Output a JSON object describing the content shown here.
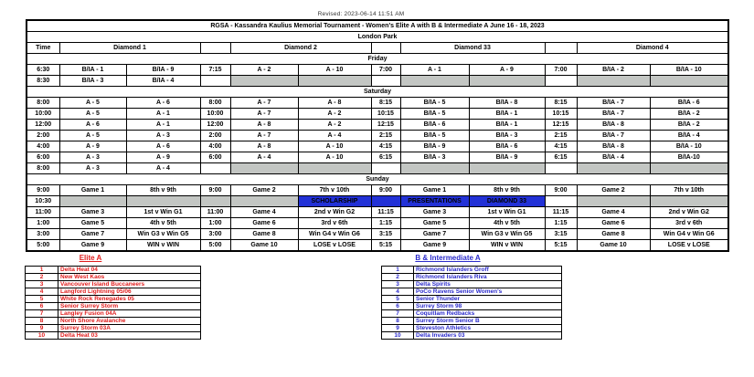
{
  "colors": {
    "red": "#e01c1c",
    "blue": "#2b2bcb",
    "banner_blue": "#2231d6",
    "blocked_gray": "#c3c6c3"
  },
  "meta": {
    "revised": "Revised: 2023-06-14 11:51 AM"
  },
  "table": {
    "title": "RGSA - Kassandra Kaulius Memorial  Tournament  -  Women's Elite A with B & Intermediate A  June 16 - 18, 2023",
    "venue": "London Park",
    "header": {
      "time_label": "Time",
      "diamond1": "Diamond 1",
      "diamond2": "Diamond 2",
      "diamond33": "Diamond 33",
      "diamond4": "Diamond 4"
    },
    "days": [
      {
        "label": "Friday",
        "rows": [
          [
            {
              "t": "6:30",
              "c": "t"
            },
            {
              "t": "B/IA - 1",
              "c": "b"
            },
            {
              "t": "B/IA - 9",
              "c": "b"
            },
            {
              "t": "7:15",
              "c": "t"
            },
            {
              "t": "A - 2",
              "c": "r"
            },
            {
              "t": "A - 10",
              "c": "r"
            },
            {
              "t": "7:00",
              "c": "t"
            },
            {
              "t": "A - 1",
              "c": "r"
            },
            {
              "t": "A - 9",
              "c": "r"
            },
            {
              "t": "7:00",
              "c": "t"
            },
            {
              "t": "B/IA - 2",
              "c": "b"
            },
            {
              "t": "B/IA - 10",
              "c": "b"
            }
          ],
          [
            {
              "t": "8:30",
              "c": "t"
            },
            {
              "t": "B/IA - 3",
              "c": "b"
            },
            {
              "t": "B/IA - 4",
              "c": "b"
            },
            {
              "t": "",
              "c": "w"
            },
            {
              "t": "",
              "c": "g"
            },
            {
              "t": "",
              "c": "g"
            },
            {
              "t": "",
              "c": "w"
            },
            {
              "t": "",
              "c": "g"
            },
            {
              "t": "",
              "c": "g"
            },
            {
              "t": "",
              "c": "w"
            },
            {
              "t": "",
              "c": "g"
            },
            {
              "t": "",
              "c": "g"
            }
          ]
        ]
      },
      {
        "label": "Saturday",
        "rows": [
          [
            {
              "t": "8:00",
              "c": "t"
            },
            {
              "t": "A - 5",
              "c": "r"
            },
            {
              "t": "A - 6",
              "c": "r"
            },
            {
              "t": "8:00",
              "c": "t"
            },
            {
              "t": "A - 7",
              "c": "r"
            },
            {
              "t": "A - 8",
              "c": "r"
            },
            {
              "t": "8:15",
              "c": "t"
            },
            {
              "t": "B/IA - 5",
              "c": "b"
            },
            {
              "t": "B/IA - 8",
              "c": "b"
            },
            {
              "t": "8:15",
              "c": "t"
            },
            {
              "t": "B/IA - 7",
              "c": "b"
            },
            {
              "t": "B/IA - 6",
              "c": "b"
            }
          ],
          [
            {
              "t": "10:00",
              "c": "t"
            },
            {
              "t": "A - 5",
              "c": "r"
            },
            {
              "t": "A - 1",
              "c": "r"
            },
            {
              "t": "10:00",
              "c": "t"
            },
            {
              "t": "A - 7",
              "c": "r"
            },
            {
              "t": "A - 2",
              "c": "r"
            },
            {
              "t": "10:15",
              "c": "t"
            },
            {
              "t": "B/IA - 5",
              "c": "b"
            },
            {
              "t": "B/IA - 1",
              "c": "b"
            },
            {
              "t": "10:15",
              "c": "t"
            },
            {
              "t": "B/IA - 7",
              "c": "b"
            },
            {
              "t": "B/IA - 2",
              "c": "b"
            }
          ],
          [
            {
              "t": "12:00",
              "c": "t"
            },
            {
              "t": "A - 6",
              "c": "r"
            },
            {
              "t": "A - 1",
              "c": "r"
            },
            {
              "t": "12:00",
              "c": "t"
            },
            {
              "t": "A - 8",
              "c": "r"
            },
            {
              "t": "A - 2",
              "c": "r"
            },
            {
              "t": "12:15",
              "c": "t"
            },
            {
              "t": "B/IA - 6",
              "c": "b"
            },
            {
              "t": "B/IA - 1",
              "c": "b"
            },
            {
              "t": "12:15",
              "c": "t"
            },
            {
              "t": "B/IA - 8",
              "c": "b"
            },
            {
              "t": "B/IA - 2",
              "c": "b"
            }
          ],
          [
            {
              "t": "2:00",
              "c": "t"
            },
            {
              "t": "A - 5",
              "c": "r"
            },
            {
              "t": "A - 3",
              "c": "r"
            },
            {
              "t": "2:00",
              "c": "t"
            },
            {
              "t": "A - 7",
              "c": "r"
            },
            {
              "t": "A - 4",
              "c": "r"
            },
            {
              "t": "2:15",
              "c": "t"
            },
            {
              "t": "B/IA - 5",
              "c": "b"
            },
            {
              "t": "B/IA - 3",
              "c": "b"
            },
            {
              "t": "2:15",
              "c": "t"
            },
            {
              "t": "B/IA - 7",
              "c": "b"
            },
            {
              "t": "B/IA - 4",
              "c": "b"
            }
          ],
          [
            {
              "t": "4:00",
              "c": "t"
            },
            {
              "t": "A - 9",
              "c": "r"
            },
            {
              "t": "A - 6",
              "c": "r"
            },
            {
              "t": "4:00",
              "c": "t"
            },
            {
              "t": "A - 8",
              "c": "r"
            },
            {
              "t": "A - 10",
              "c": "r"
            },
            {
              "t": "4:15",
              "c": "t"
            },
            {
              "t": "B/IA - 9",
              "c": "b"
            },
            {
              "t": "B/IA - 6",
              "c": "b"
            },
            {
              "t": "4:15",
              "c": "t"
            },
            {
              "t": "B/IA - 8",
              "c": "b"
            },
            {
              "t": "B/IA - 10",
              "c": "b"
            }
          ],
          [
            {
              "t": "6:00",
              "c": "t"
            },
            {
              "t": "A - 3",
              "c": "r"
            },
            {
              "t": "A - 9",
              "c": "r"
            },
            {
              "t": "6:00",
              "c": "t"
            },
            {
              "t": "A - 4",
              "c": "r"
            },
            {
              "t": "A - 10",
              "c": "r"
            },
            {
              "t": "6:15",
              "c": "t"
            },
            {
              "t": "B/IA - 3",
              "c": "b"
            },
            {
              "t": "B/IA - 9",
              "c": "b"
            },
            {
              "t": "6:15",
              "c": "t"
            },
            {
              "t": "B/IA - 4",
              "c": "b"
            },
            {
              "t": "B/IA-10",
              "c": "b"
            }
          ],
          [
            {
              "t": "8:00",
              "c": "t"
            },
            {
              "t": "A - 3",
              "c": "r"
            },
            {
              "t": "A - 4",
              "c": "r"
            },
            {
              "t": "",
              "c": "w"
            },
            {
              "t": "",
              "c": "g"
            },
            {
              "t": "",
              "c": "g"
            },
            {
              "t": "",
              "c": "w"
            },
            {
              "t": "",
              "c": "g"
            },
            {
              "t": "",
              "c": "g"
            },
            {
              "t": "",
              "c": "w"
            },
            {
              "t": "",
              "c": "g"
            },
            {
              "t": "",
              "c": "g"
            }
          ]
        ]
      },
      {
        "label": "Sunday",
        "rows": [
          [
            {
              "t": "9:00",
              "c": "t"
            },
            {
              "t": "Game 1",
              "c": "r"
            },
            {
              "t": "8th v 9th",
              "c": "r"
            },
            {
              "t": "9:00",
              "c": "t"
            },
            {
              "t": "Game 2",
              "c": "r"
            },
            {
              "t": "7th v 10th",
              "c": "r"
            },
            {
              "t": "9:00",
              "c": "t"
            },
            {
              "t": "Game 1",
              "c": "b"
            },
            {
              "t": "8th v 9th",
              "c": "b"
            },
            {
              "t": "9:00",
              "c": "t"
            },
            {
              "t": "Game 2",
              "c": "b"
            },
            {
              "t": "7th v 10th",
              "c": "b"
            }
          ],
          [
            {
              "t": "10:30",
              "c": "t"
            },
            {
              "t": "",
              "c": "g"
            },
            {
              "t": "",
              "c": "g"
            },
            {
              "t": "",
              "c": "g"
            },
            {
              "t": "",
              "c": "g"
            },
            {
              "t": "SCHOLARSHIP",
              "c": "bn"
            },
            {
              "t": "",
              "c": "bn"
            },
            {
              "t": "PRESENTATIONS",
              "c": "bn"
            },
            {
              "t": "DIAMOND 33",
              "c": "bn"
            },
            {
              "t": "",
              "c": "w"
            },
            {
              "t": "",
              "c": "g"
            },
            {
              "t": "",
              "c": "g"
            }
          ],
          [
            {
              "t": "11:00",
              "c": "t"
            },
            {
              "t": "Game 3",
              "c": "r"
            },
            {
              "t": "1st v Win G1",
              "c": "r"
            },
            {
              "t": "11:00",
              "c": "t"
            },
            {
              "t": "Game 4",
              "c": "r"
            },
            {
              "t": "2nd v Win G2",
              "c": "r"
            },
            {
              "t": "11:15",
              "c": "t"
            },
            {
              "t": "Game 3",
              "c": "b"
            },
            {
              "t": "1st v Win G1",
              "c": "b"
            },
            {
              "t": "11:15",
              "c": "t"
            },
            {
              "t": "Game 4",
              "c": "b"
            },
            {
              "t": "2nd v Win G2",
              "c": "b"
            }
          ],
          [
            {
              "t": "1:00",
              "c": "t"
            },
            {
              "t": "Game 5",
              "c": "r"
            },
            {
              "t": "4th v 5th",
              "c": "r"
            },
            {
              "t": "1:00",
              "c": "t"
            },
            {
              "t": "Game 6",
              "c": "r"
            },
            {
              "t": "3rd v 6th",
              "c": "r"
            },
            {
              "t": "1:15",
              "c": "t"
            },
            {
              "t": "Game 5",
              "c": "b"
            },
            {
              "t": "4th v 5th",
              "c": "b"
            },
            {
              "t": "1:15",
              "c": "t"
            },
            {
              "t": "Game 6",
              "c": "b"
            },
            {
              "t": "3rd v 6th",
              "c": "b"
            }
          ],
          [
            {
              "t": "3:00",
              "c": "t"
            },
            {
              "t": "Game 7",
              "c": "r"
            },
            {
              "t": "Win G3 v Win G5",
              "c": "r"
            },
            {
              "t": "3:00",
              "c": "t"
            },
            {
              "t": "Game 8",
              "c": "r"
            },
            {
              "t": "Win G4 v Win G6",
              "c": "r"
            },
            {
              "t": "3:15",
              "c": "t"
            },
            {
              "t": "Game 7",
              "c": "b"
            },
            {
              "t": "Win G3 v Win G5",
              "c": "b"
            },
            {
              "t": "3:15",
              "c": "t"
            },
            {
              "t": "Game 8",
              "c": "b"
            },
            {
              "t": "Win G4 v Win G6",
              "c": "b"
            }
          ],
          [
            {
              "t": "5:00",
              "c": "t"
            },
            {
              "t": "Game 9",
              "c": "r"
            },
            {
              "t": "WIN v WIN",
              "c": "r"
            },
            {
              "t": "5:00",
              "c": "t"
            },
            {
              "t": "Game 10",
              "c": "r"
            },
            {
              "t": "LOSE v LOSE",
              "c": "r"
            },
            {
              "t": "5:15",
              "c": "t"
            },
            {
              "t": "Game 9",
              "c": "b"
            },
            {
              "t": "WIN v WIN",
              "c": "b"
            },
            {
              "t": "5:15",
              "c": "t"
            },
            {
              "t": "Game 10",
              "c": "b"
            },
            {
              "t": "LOSE v LOSE",
              "c": "b"
            }
          ]
        ]
      }
    ]
  },
  "legend": {
    "elite": {
      "title": "Elite A",
      "teams": [
        {
          "n": "1",
          "name": "Delta Heat 04"
        },
        {
          "n": "2",
          "name": "New West Kaos"
        },
        {
          "n": "3",
          "name": "Vancouver Island Buccaneers"
        },
        {
          "n": "4",
          "name": "Langford Lightning 05/06"
        },
        {
          "n": "5",
          "name": "White Rock Renegades 05"
        },
        {
          "n": "6",
          "name": "Senior Surrey Storm"
        },
        {
          "n": "7",
          "name": "Langley Fusion 04A"
        },
        {
          "n": "8",
          "name": "North Shore Avalanche"
        },
        {
          "n": "9",
          "name": "Surrey Storm 03A"
        },
        {
          "n": "10",
          "name": "Delta Heat 03"
        }
      ]
    },
    "b_int": {
      "title": "B & Intermediate A",
      "teams": [
        {
          "n": "1",
          "name": "Richmond Islanders Groff"
        },
        {
          "n": "2",
          "name": "Richmond Islanders Riva"
        },
        {
          "n": "3",
          "name": "Delta Spirits"
        },
        {
          "n": "4",
          "name": "PoCo Ravens Senior Women's"
        },
        {
          "n": "5",
          "name": "Senior Thunder"
        },
        {
          "n": "6",
          "name": "Surrey Storm 98"
        },
        {
          "n": "7",
          "name": "Coquitlam Redbacks"
        },
        {
          "n": "8",
          "name": "Surrey Storm Senior B"
        },
        {
          "n": "9",
          "name": "Steveston Athletics"
        },
        {
          "n": "10",
          "name": "Delta Invaders 03"
        }
      ]
    }
  }
}
